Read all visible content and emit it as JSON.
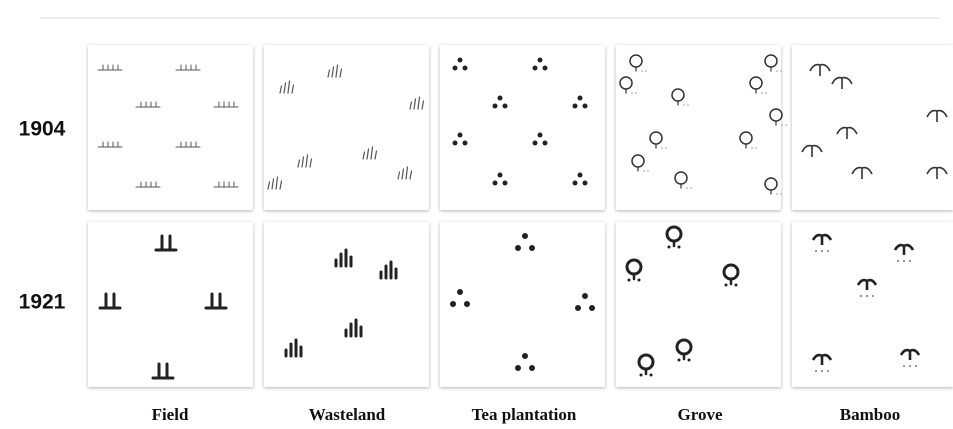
{
  "rows": [
    {
      "year": "1904"
    },
    {
      "year": "1921"
    }
  ],
  "columns": [
    "Field",
    "Wasteland",
    "Tea plantation",
    "Grove",
    "Bamboo"
  ]
}
